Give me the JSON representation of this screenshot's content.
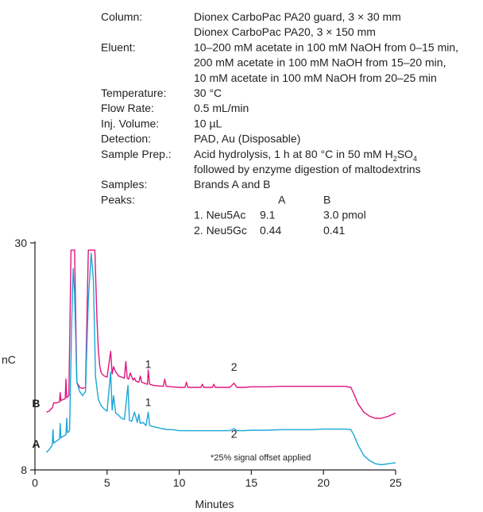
{
  "conditions": [
    {
      "label": "Column:",
      "lines": [
        "Dionex CarboPac PA20 guard, 3 × 30 mm",
        "Dionex CarboPac PA20, 3 × 150 mm"
      ]
    },
    {
      "label": "Eluent:",
      "lines": [
        "10–200 mM acetate in 100 mM NaOH from 0–15 min,",
        "200 mM acetate in 100 mM NaOH from 15–20 min,",
        "10 mM acetate in 100 mM NaOH from 20–25 min"
      ]
    },
    {
      "label": "Temperature:",
      "lines": [
        "30 °C"
      ]
    },
    {
      "label": "Flow Rate:",
      "lines": [
        "0.5 mL/min"
      ]
    },
    {
      "label": "Inj. Volume:",
      "lines": [
        "10 µL"
      ]
    },
    {
      "label": "Detection:",
      "lines": [
        "PAD, Au (Disposable)"
      ]
    },
    {
      "label": "Sample Prep.:",
      "lines": [
        "Acid hydrolysis, 1 h at 80 °C in 50 mM H",
        "followed by enzyme digestion of maltodextrins"
      ]
    },
    {
      "label": "Samples:",
      "lines": [
        "Brands A and B"
      ]
    }
  ],
  "sample_prep_formula": {
    "base": "H",
    "sub1": "2",
    "mid": "SO",
    "sub2": "4"
  },
  "peaks": {
    "label": "Peaks:",
    "columns": [
      "A",
      "B"
    ],
    "rows": [
      {
        "name": "1. Neu5Ac",
        "a": "9.1",
        "b": "3.0 pmol"
      },
      {
        "name": "2. Neu5Gc",
        "a": "0.44",
        "b": "0.41"
      }
    ]
  },
  "note": "*25% signal offset applied",
  "colors": {
    "A": "#1aa7d9",
    "B": "#e0167e",
    "axis": "#231f20"
  },
  "chart_data": {
    "type": "line",
    "xlabel": "Minutes",
    "ylabel": "nC",
    "xlim": [
      0,
      25
    ],
    "ylim": [
      8,
      30
    ],
    "x_ticks": [
      0,
      5,
      10,
      15,
      20,
      25
    ],
    "y_ticks": [
      8,
      30
    ],
    "peak_labels": [
      {
        "series": "B",
        "text": "1",
        "x": 7.85,
        "y": 17.9
      },
      {
        "series": "B",
        "text": "2",
        "x": 13.8,
        "y": 17.6
      },
      {
        "series": "A",
        "text": "1",
        "x": 7.85,
        "y": 14.2
      },
      {
        "series": "A",
        "text": "2",
        "x": 13.8,
        "y": 11.1
      }
    ],
    "series": [
      {
        "name": "B",
        "x": [
          0.8,
          1.0,
          1.1,
          1.2,
          1.3,
          1.5,
          1.7,
          1.75,
          1.8,
          1.9,
          2.1,
          2.15,
          2.2,
          2.35,
          2.5,
          2.6,
          2.7,
          2.75,
          2.9,
          3.1,
          3.3,
          3.5,
          3.7,
          3.75,
          4.1,
          4.15,
          4.3,
          4.4,
          4.5,
          4.6,
          4.8,
          5.0,
          5.25,
          5.35,
          5.45,
          5.6,
          5.8,
          6.0,
          6.2,
          6.3,
          6.4,
          6.5,
          6.6,
          6.8,
          6.9,
          7.0,
          7.2,
          7.3,
          7.4,
          7.6,
          7.8,
          7.85,
          7.95,
          8.2,
          8.5,
          8.9,
          9.0,
          9.1,
          9.5,
          10.0,
          10.4,
          10.5,
          10.6,
          11.0,
          11.5,
          11.6,
          11.7,
          12.0,
          12.3,
          12.4,
          12.5,
          13.0,
          13.5,
          13.8,
          14.0,
          14.5,
          15.0,
          16.0,
          17.0,
          18.0,
          19.0,
          20.0,
          21.0,
          21.5,
          21.9,
          22.1,
          22.4,
          22.8,
          23.2,
          23.6,
          24.0,
          24.5,
          24.8,
          25.0
        ],
        "y": [
          13.6,
          13.7,
          13.9,
          14.0,
          14.5,
          14.5,
          14.6,
          15.5,
          14.7,
          14.8,
          14.9,
          16.8,
          15.0,
          15.2,
          29.3,
          29.3,
          29.3,
          29.3,
          16.5,
          16.0,
          15.9,
          16.0,
          29.3,
          29.3,
          29.3,
          29.3,
          22.5,
          19.5,
          18.0,
          17.4,
          17.1,
          17.0,
          19.5,
          17.3,
          18.0,
          17.5,
          17.1,
          17.0,
          16.9,
          18.5,
          16.9,
          16.8,
          17.4,
          16.7,
          16.9,
          16.6,
          16.5,
          17.1,
          16.5,
          16.4,
          16.3,
          17.7,
          16.3,
          16.2,
          16.15,
          16.1,
          16.8,
          16.1,
          16.05,
          16.0,
          16.0,
          16.5,
          16.0,
          16.0,
          16.0,
          16.3,
          16.0,
          16.0,
          16.0,
          16.3,
          16.0,
          16.0,
          16.0,
          16.4,
          16.0,
          16.0,
          16.05,
          16.05,
          16.1,
          16.1,
          16.1,
          16.1,
          16.1,
          16.1,
          16.0,
          15.4,
          14.4,
          13.6,
          13.2,
          13.0,
          13.0,
          13.2,
          13.4,
          13.5
        ]
      },
      {
        "name": "A",
        "x": [
          0.8,
          1.0,
          1.2,
          1.25,
          1.3,
          1.5,
          1.7,
          1.75,
          1.8,
          2.0,
          2.15,
          2.2,
          2.25,
          2.4,
          2.55,
          2.65,
          2.75,
          2.9,
          3.1,
          3.3,
          3.5,
          3.7,
          3.9,
          4.05,
          4.2,
          4.4,
          4.6,
          4.8,
          5.0,
          5.25,
          5.35,
          5.45,
          5.6,
          5.8,
          6.0,
          6.2,
          6.45,
          6.55,
          6.7,
          6.9,
          7.1,
          7.2,
          7.3,
          7.5,
          7.7,
          7.85,
          7.95,
          8.2,
          8.5,
          8.8,
          9.2,
          9.6,
          10.0,
          10.5,
          11.0,
          11.5,
          12.0,
          12.5,
          13.0,
          13.5,
          13.8,
          14.0,
          14.5,
          15.0,
          16.0,
          17.0,
          18.0,
          19.0,
          20.0,
          21.0,
          21.5,
          21.9,
          22.1,
          22.4,
          22.8,
          23.2,
          23.6,
          24.0,
          24.5,
          25.0
        ],
        "y": [
          9.7,
          10.0,
          10.4,
          11.9,
          10.6,
          10.8,
          11.0,
          12.5,
          11.1,
          11.3,
          11.4,
          13.0,
          11.6,
          11.8,
          22.5,
          27.5,
          25.0,
          16.5,
          15.6,
          15.2,
          15.6,
          24.5,
          29.0,
          26.5,
          17.0,
          14.8,
          14.2,
          13.9,
          13.7,
          17.5,
          13.8,
          15.2,
          13.5,
          13.3,
          13.0,
          12.9,
          16.2,
          12.8,
          12.7,
          13.6,
          12.6,
          13.4,
          12.5,
          12.6,
          12.3,
          13.6,
          12.3,
          12.2,
          12.1,
          12.0,
          11.9,
          11.9,
          11.8,
          11.8,
          11.8,
          11.8,
          11.8,
          11.8,
          11.8,
          11.8,
          12.0,
          11.8,
          11.8,
          11.85,
          11.85,
          11.9,
          11.9,
          11.9,
          11.95,
          11.95,
          11.95,
          11.9,
          11.4,
          10.4,
          9.4,
          8.9,
          8.6,
          8.5,
          8.6,
          8.7
        ]
      }
    ]
  }
}
